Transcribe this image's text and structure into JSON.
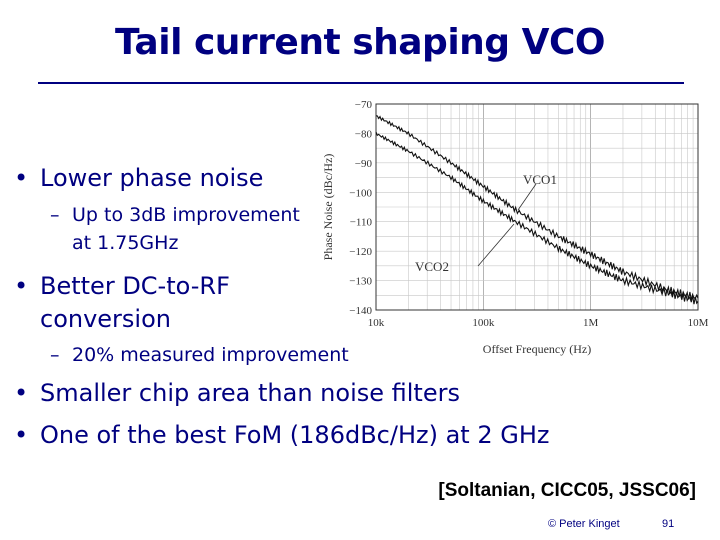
{
  "slide": {
    "title": "Tail current shaping VCO",
    "bullets": [
      "Lower phase noise",
      "Better DC-to-RF",
      "conversion",
      "Smaller chip area than noise filters",
      "One of the best FoM (186dBc/Hz) at 2 GHz"
    ],
    "subbullets": [
      "Up to 3dB improvement",
      "at 1.75GHz",
      "20% measured improvement"
    ],
    "bullet_marker": "•",
    "dash_marker": "–",
    "citation": "[Soltanian, CICC05, JSSC06]",
    "copyright": "© Peter Kinget",
    "page_number": "91",
    "accent_color": "#000080"
  },
  "chart_data": {
    "type": "line",
    "xlabel": "Offset Frequency (Hz)",
    "ylabel": "Phase Noise (dBc/Hz)",
    "x_scale": "log",
    "xlim": [
      10000,
      10000000
    ],
    "ylim": [
      -140,
      -70
    ],
    "x_ticks": [
      "10k",
      "100k",
      "1M",
      "10M"
    ],
    "y_ticks": [
      "−70",
      "−80",
      "−90",
      "−100",
      "−110",
      "−120",
      "−130",
      "−140"
    ],
    "grid": true,
    "annotations": [
      "VCO1",
      "VCO2"
    ],
    "series": [
      {
        "name": "VCO1",
        "x": [
          10000,
          20000,
          50000,
          100000,
          200000,
          500000,
          1000000,
          2000000,
          5000000,
          10000000
        ],
        "y": [
          -74,
          -80,
          -90,
          -98,
          -106,
          -115,
          -121,
          -127,
          -133,
          -136
        ]
      },
      {
        "name": "VCO2",
        "x": [
          10000,
          20000,
          50000,
          100000,
          200000,
          500000,
          1000000,
          2000000,
          5000000,
          10000000
        ],
        "y": [
          -80,
          -86,
          -95,
          -103,
          -110,
          -119,
          -125,
          -130,
          -134,
          -137
        ]
      }
    ]
  }
}
